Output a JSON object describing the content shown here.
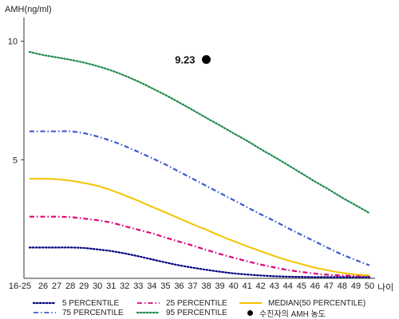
{
  "chart_data": {
    "type": "line",
    "ylabel": "AMH(ng/ml)",
    "xlabel": "나이",
    "x_categories": [
      "16-25",
      "26",
      "27",
      "28",
      "29",
      "30",
      "31",
      "32",
      "33",
      "34",
      "35",
      "36",
      "37",
      "38",
      "39",
      "40",
      "41",
      "42",
      "43",
      "44",
      "45",
      "46",
      "47",
      "48",
      "49",
      "50"
    ],
    "y_ticks": [
      5,
      10
    ],
    "ylim": [
      0,
      11
    ],
    "grid": false,
    "series": [
      {
        "name": "5 PERCENTILE",
        "color": "#000080",
        "style": "dotted",
        "values": [
          1.3,
          1.3,
          1.3,
          1.3,
          1.28,
          1.22,
          1.15,
          1.05,
          0.93,
          0.8,
          0.67,
          0.55,
          0.45,
          0.36,
          0.28,
          0.21,
          0.16,
          0.12,
          0.09,
          0.07,
          0.06,
          0.05,
          0.05,
          0.05,
          0.05,
          0.05
        ]
      },
      {
        "name": "25 PERCENTILE",
        "color": "#e0007a",
        "style": "dashdot",
        "values": [
          2.6,
          2.6,
          2.6,
          2.58,
          2.52,
          2.45,
          2.35,
          2.2,
          2.05,
          1.9,
          1.72,
          1.55,
          1.38,
          1.2,
          1.03,
          0.87,
          0.72,
          0.58,
          0.46,
          0.35,
          0.27,
          0.2,
          0.15,
          0.12,
          0.1,
          0.1
        ]
      },
      {
        "name": "MEDIAN(50 PERCENTILE)",
        "color": "#f2c400",
        "style": "solid",
        "values": [
          4.2,
          4.2,
          4.18,
          4.12,
          4.02,
          3.9,
          3.72,
          3.5,
          3.27,
          3.02,
          2.78,
          2.53,
          2.28,
          2.05,
          1.8,
          1.57,
          1.35,
          1.14,
          0.94,
          0.76,
          0.6,
          0.45,
          0.33,
          0.23,
          0.16,
          0.13
        ]
      },
      {
        "name": "75 PERCENTILE",
        "color": "#3a5bd0",
        "style": "dashdot",
        "values": [
          6.2,
          6.2,
          6.2,
          6.2,
          6.12,
          5.98,
          5.8,
          5.58,
          5.33,
          5.07,
          4.8,
          4.5,
          4.2,
          3.9,
          3.6,
          3.3,
          3.0,
          2.7,
          2.42,
          2.12,
          1.83,
          1.55,
          1.27,
          1.0,
          0.77,
          0.55
        ]
      },
      {
        "name": "95 PERCENTILE",
        "color": "#1f8a4c",
        "style": "dotted",
        "values": [
          9.55,
          9.42,
          9.32,
          9.22,
          9.1,
          8.95,
          8.77,
          8.55,
          8.3,
          8.02,
          7.73,
          7.42,
          7.1,
          6.77,
          6.45,
          6.12,
          5.8,
          5.45,
          5.12,
          4.78,
          4.43,
          4.08,
          3.75,
          3.4,
          3.08,
          2.75
        ]
      }
    ],
    "point": {
      "name": "수진자의 AMH 농도",
      "x": "38",
      "y": 9.23,
      "label": "9.23",
      "color": "#000000"
    }
  }
}
